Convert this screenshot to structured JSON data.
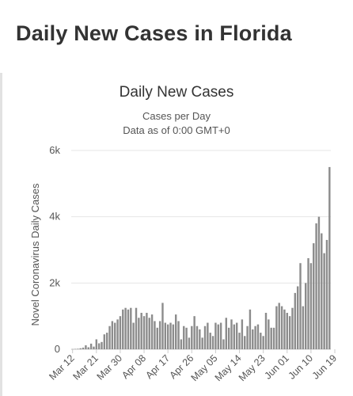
{
  "page": {
    "title": "Daily New Cases in Florida"
  },
  "chart_data": {
    "type": "bar",
    "title": "Daily New Cases",
    "subtitle": "Cases per Day",
    "subtitle2": "Data as of 0:00 GMT+0",
    "ylabel": "Novel Coronavirus Daily Cases",
    "xlabel": "",
    "ylim": [
      0,
      6000
    ],
    "yticks": [
      0,
      2000,
      4000,
      6000
    ],
    "ytick_labels": [
      "0",
      "2k",
      "4k",
      "6k"
    ],
    "x_tick_labels": [
      "Mar 12",
      "Mar 21",
      "Mar 30",
      "Apr 08",
      "Apr 17",
      "Apr 26",
      "May 05",
      "May 14",
      "May 23",
      "Jun 01",
      "Jun 10",
      "Jun 19"
    ],
    "x_tick_every": 9,
    "grid": true,
    "bar_color": "#8c8c8c",
    "series": [
      {
        "values": [
          5,
          10,
          15,
          30,
          50,
          120,
          60,
          170,
          80,
          300,
          180,
          220,
          450,
          500,
          700,
          850,
          800,
          900,
          1000,
          1200,
          1250,
          1200,
          1250,
          800,
          1250,
          950,
          1100,
          1000,
          1100,
          950,
          1050,
          850,
          650,
          850,
          1400,
          800,
          750,
          800,
          750,
          1050,
          850,
          300,
          700,
          650,
          350,
          700,
          1000,
          700,
          600,
          350,
          700,
          800,
          500,
          400,
          800,
          750,
          800,
          300,
          950,
          650,
          900,
          750,
          800,
          500,
          900,
          400,
          700,
          1200,
          600,
          700,
          750,
          500,
          400,
          1100,
          900,
          650,
          650,
          1300,
          1400,
          1300,
          1200,
          1100,
          1000,
          1250,
          1700,
          1900,
          2600,
          1300,
          2000,
          2750,
          2600,
          3200,
          3800,
          4000,
          3500,
          2900,
          3300,
          5500
        ]
      }
    ]
  }
}
